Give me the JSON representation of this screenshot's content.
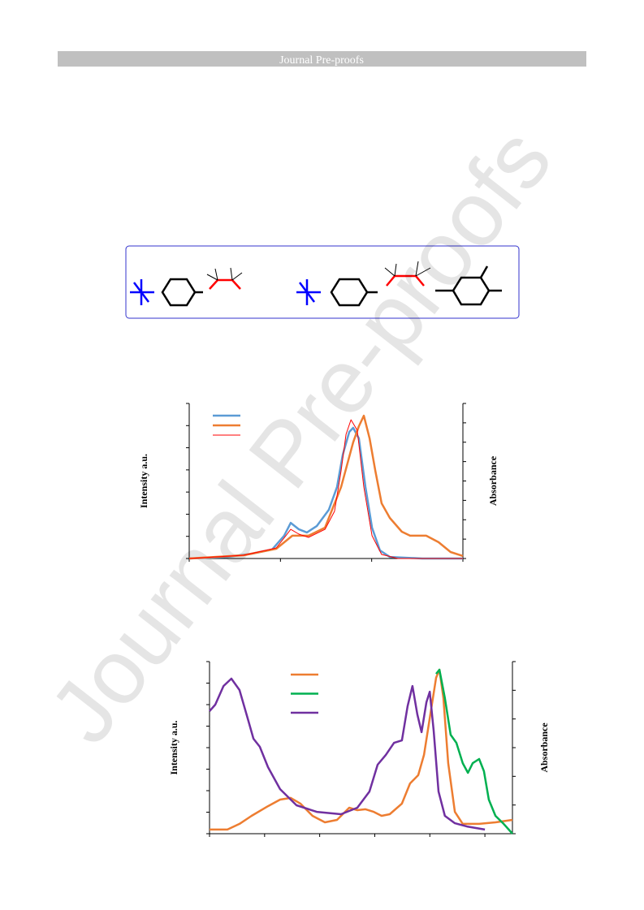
{
  "header": {
    "title": "Journal Pre-proofs"
  },
  "watermark": "Journal Pre-proofs",
  "chart_data": [
    {
      "type": "line",
      "y_label": "Intensity a.u.",
      "y2_label": "Absorbance",
      "xlim": [
        0,
        100
      ],
      "ylim": [
        0,
        100
      ],
      "y2lim": [
        0,
        100
      ],
      "series": [
        {
          "color": "#5b9bd5",
          "x": [
            0,
            13.9,
            22.8,
            30.3,
            34.7,
            37.1,
            40.1,
            43.0,
            46.6,
            51.0,
            54.0,
            56.1,
            58.5,
            59.9,
            62.0,
            64.4,
            66.8,
            69.7,
            73.3,
            85.2,
            100
          ],
          "values": [
            0,
            1.0,
            3.1,
            5.8,
            14.7,
            23.0,
            18.8,
            16.8,
            20.9,
            31.4,
            46.1,
            67.0,
            81.7,
            84.3,
            77.5,
            46.1,
            19.9,
            5.2,
            1.0,
            0,
            0
          ]
        },
        {
          "color": "#ed7d31",
          "axis": "y2",
          "x": [
            0,
            19.9,
            31.8,
            37.7,
            43.6,
            49.6,
            55.5,
            59.9,
            62.0,
            63.8,
            65.9,
            68.0,
            70.3,
            73.3,
            77.7,
            80.7,
            86.6,
            91.1,
            95.5,
            100
          ],
          "values": [
            0,
            2.1,
            6.3,
            14.7,
            14.7,
            19.9,
            46.1,
            75.0,
            85.3,
            92.1,
            77.5,
            56.5,
            35.6,
            26.2,
            17.3,
            14.7,
            14.7,
            10.5,
            4.2,
            1.6
          ]
        },
        {
          "color": "#ff0000",
          "x": [
            0,
            19.9,
            31.8,
            35.3,
            37.1,
            40.1,
            43.6,
            49.6,
            53.1,
            55.5,
            57.3,
            59.1,
            61.4,
            63.8,
            66.8,
            70.3,
            76.3,
            100
          ],
          "values": [
            0,
            2.1,
            6.8,
            14.7,
            18.8,
            15.7,
            13.6,
            18.8,
            30.4,
            56.5,
            80.1,
            89.5,
            82.7,
            46.1,
            14.7,
            2.6,
            0,
            0
          ]
        }
      ]
    },
    {
      "type": "line",
      "y_label": "Intensity a.u.",
      "y2_label": "Absorbance",
      "xlim": [
        0,
        100
      ],
      "ylim": [
        0,
        100
      ],
      "y2lim": [
        0,
        100
      ],
      "series": [
        {
          "color": "#ed7d31",
          "x": [
            0,
            5.9,
            9.9,
            13.9,
            19.3,
            23.3,
            26.8,
            30.0,
            34.0,
            38.1,
            42.1,
            46.1,
            48.8,
            51.5,
            54.2,
            56.8,
            59.5,
            63.5,
            66.2,
            68.9,
            70.8,
            72.9,
            74.8,
            75.9,
            77.2,
            78.8,
            81.0,
            83.6,
            89.0,
            94.4,
            100
          ],
          "values": [
            2.4,
            2.4,
            5.7,
            10.4,
            16.0,
            19.8,
            20.8,
            17.5,
            10.4,
            6.6,
            8.0,
            15.1,
            13.7,
            14.2,
            12.7,
            10.4,
            11.3,
            17.5,
            29.2,
            34.0,
            45.8,
            69.3,
            90.6,
            95.3,
            78.8,
            41.0,
            12.7,
            5.7,
            5.7,
            6.6,
            8.0
          ]
        },
        {
          "color": "#00b050",
          "axis": "y2",
          "x": [
            74.8,
            75.9,
            77.7,
            79.6,
            81.5,
            83.6,
            85.3,
            86.9,
            89.0,
            90.6,
            92.2,
            94.4,
            97.1,
            100
          ],
          "values": [
            92.9,
            95.3,
            78.8,
            57.5,
            52.8,
            41.0,
            35.4,
            41.0,
            43.4,
            36.3,
            19.8,
            10.4,
            5.7,
            0
          ]
        },
        {
          "color": "#7030a0",
          "axis": "y2",
          "x": [
            0,
            1.9,
            4.6,
            7.2,
            9.9,
            12.6,
            14.5,
            16.6,
            19.3,
            23.3,
            28.7,
            35.4,
            43.4,
            48.8,
            52.8,
            55.5,
            58.2,
            60.9,
            63.5,
            65.4,
            67.0,
            68.6,
            70.0,
            71.6,
            72.7,
            74.0,
            75.6,
            77.7,
            81.0,
            85.0,
            90.9
          ],
          "values": [
            71.2,
            75.0,
            85.8,
            90.1,
            83.5,
            67.0,
            55.2,
            50.5,
            38.7,
            25.9,
            16.5,
            12.7,
            11.3,
            15.1,
            24.5,
            40.1,
            45.8,
            52.8,
            54.2,
            74.1,
            85.8,
            69.3,
            59.0,
            76.4,
            82.5,
            59.9,
            24.5,
            10.4,
            6.1,
            4.2,
            2.4
          ]
        }
      ]
    }
  ]
}
